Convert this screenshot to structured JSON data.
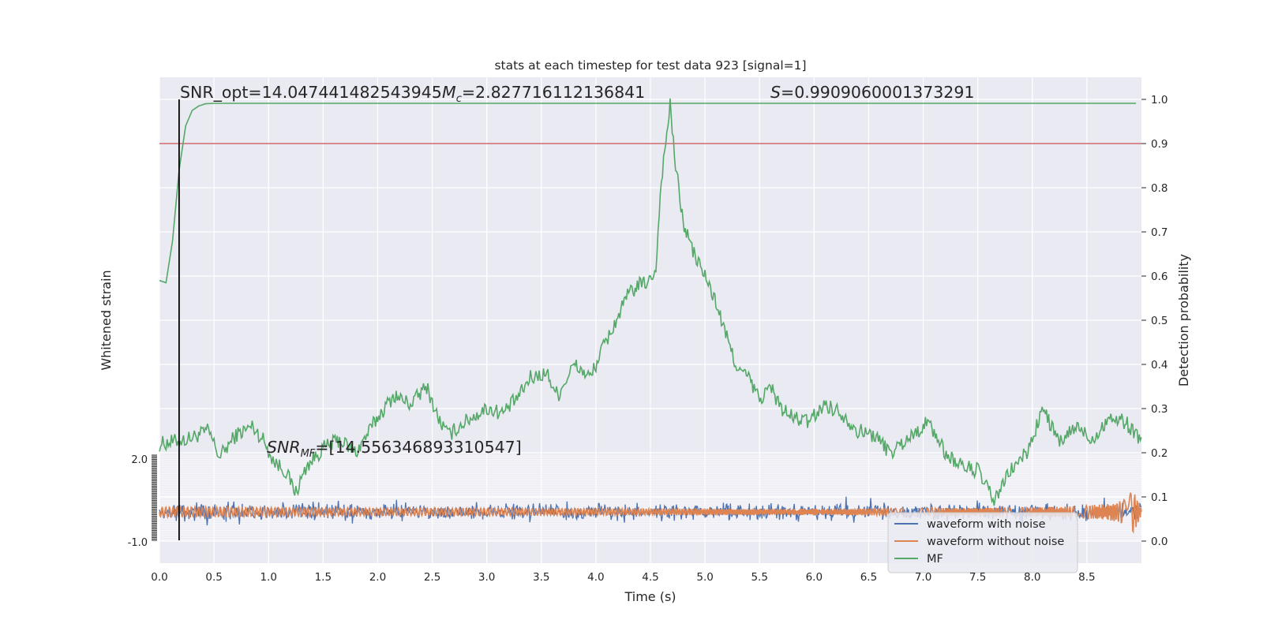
{
  "chart_data": {
    "type": "line",
    "title": "stats at each timestep for test data 923 [signal=1]",
    "xlabel": "Time (s)",
    "ylabel_left": "Whitened strain",
    "ylabel_right": "Detection probability",
    "xlim": [
      0.0,
      9.0
    ],
    "ylim_right": [
      -0.05,
      1.05
    ],
    "x_ticks": [
      "0.0",
      "0.5",
      "1.0",
      "1.5",
      "2.0",
      "2.5",
      "3.0",
      "3.5",
      "4.0",
      "4.5",
      "5.0",
      "5.5",
      "6.0",
      "6.5",
      "7.0",
      "7.5",
      "8.0",
      "8.5"
    ],
    "y_ticks_right": [
      "0.0",
      "0.1",
      "0.2",
      "0.3",
      "0.4",
      "0.5",
      "0.6",
      "0.7",
      "0.8",
      "0.9",
      "1.0"
    ],
    "y_left_top_tick": "2.0",
    "y_left_bottom_tick": "-1.0",
    "grid": true,
    "legend_position": "bottom-right",
    "legend": [
      "waveform with noise",
      "waveform without noise",
      "MF"
    ],
    "annotations": {
      "snr_opt": "SNR_opt=14.047441482543945",
      "mc_symbol": "M",
      "mc_sub": "c",
      "mc_value": "=2.827716112136841",
      "s_symbol": "S",
      "s_value": "=0.9909060001373291",
      "snr_mf_symbol": "SNR",
      "snr_mf_sub": "MF",
      "snr_mf_value": "=[14.556346893310547]"
    },
    "threshold": 0.9,
    "marker_time": 0.18,
    "series": [
      {
        "name": "MF",
        "color": "#55a868",
        "x": [
          0.0,
          0.06,
          0.12,
          0.18,
          0.24,
          0.3,
          0.36,
          0.42,
          0.5,
          0.6,
          0.8,
          1.0,
          2.0,
          3.0,
          4.0,
          5.0,
          6.0,
          7.0,
          8.0,
          8.95
        ],
        "y": [
          0.59,
          0.585,
          0.68,
          0.84,
          0.94,
          0.975,
          0.985,
          0.99,
          0.991,
          0.991,
          0.991,
          0.991,
          0.991,
          0.991,
          0.991,
          0.991,
          0.991,
          0.991,
          0.991,
          0.991
        ]
      },
      {
        "name": "",
        "color": "#55a868",
        "x": [
          0.0,
          0.25,
          0.45,
          0.55,
          0.7,
          0.85,
          0.95,
          1.05,
          1.15,
          1.25,
          1.35,
          1.5,
          1.65,
          1.8,
          2.0,
          2.15,
          2.3,
          2.45,
          2.55,
          2.65,
          2.8,
          3.0,
          3.15,
          3.3,
          3.4,
          3.55,
          3.65,
          3.8,
          3.95,
          4.05,
          4.15,
          4.3,
          4.4,
          4.5,
          4.55,
          4.6,
          4.64,
          4.68,
          4.72,
          4.8,
          4.9,
          5.0,
          5.1,
          5.2,
          5.3,
          5.4,
          5.5,
          5.6,
          5.7,
          5.8,
          5.95,
          6.1,
          6.25,
          6.4,
          6.55,
          6.7,
          6.9,
          7.05,
          7.2,
          7.35,
          7.5,
          7.65,
          7.8,
          7.95,
          8.1,
          8.25,
          8.4,
          8.55,
          8.7,
          8.85,
          9.0
        ],
        "y": [
          0.22,
          0.23,
          0.25,
          0.19,
          0.24,
          0.26,
          0.23,
          0.18,
          0.16,
          0.11,
          0.17,
          0.21,
          0.23,
          0.2,
          0.28,
          0.33,
          0.31,
          0.35,
          0.28,
          0.24,
          0.27,
          0.3,
          0.29,
          0.33,
          0.37,
          0.38,
          0.33,
          0.4,
          0.37,
          0.43,
          0.48,
          0.56,
          0.58,
          0.59,
          0.62,
          0.82,
          0.9,
          0.99,
          0.87,
          0.72,
          0.65,
          0.6,
          0.54,
          0.46,
          0.39,
          0.37,
          0.32,
          0.35,
          0.3,
          0.28,
          0.27,
          0.31,
          0.29,
          0.25,
          0.24,
          0.2,
          0.24,
          0.27,
          0.2,
          0.17,
          0.16,
          0.09,
          0.16,
          0.2,
          0.3,
          0.22,
          0.26,
          0.23,
          0.28,
          0.27,
          0.23
        ]
      },
      {
        "name": "waveform without noise",
        "color": "#dd8452",
        "x": [
          0.0,
          1.0,
          2.0,
          3.0,
          4.0,
          5.0,
          6.0,
          7.0,
          8.0,
          8.4,
          8.7,
          8.85,
          8.92,
          8.97,
          9.0
        ],
        "amplitude": [
          0.08,
          0.07,
          0.06,
          0.06,
          0.05,
          0.05,
          0.05,
          0.06,
          0.07,
          0.09,
          0.13,
          0.2,
          0.35,
          0.2,
          0.05
        ]
      },
      {
        "name": "waveform with noise",
        "color": "#4c72b0",
        "amplitude_approx": 0.75
      }
    ]
  }
}
